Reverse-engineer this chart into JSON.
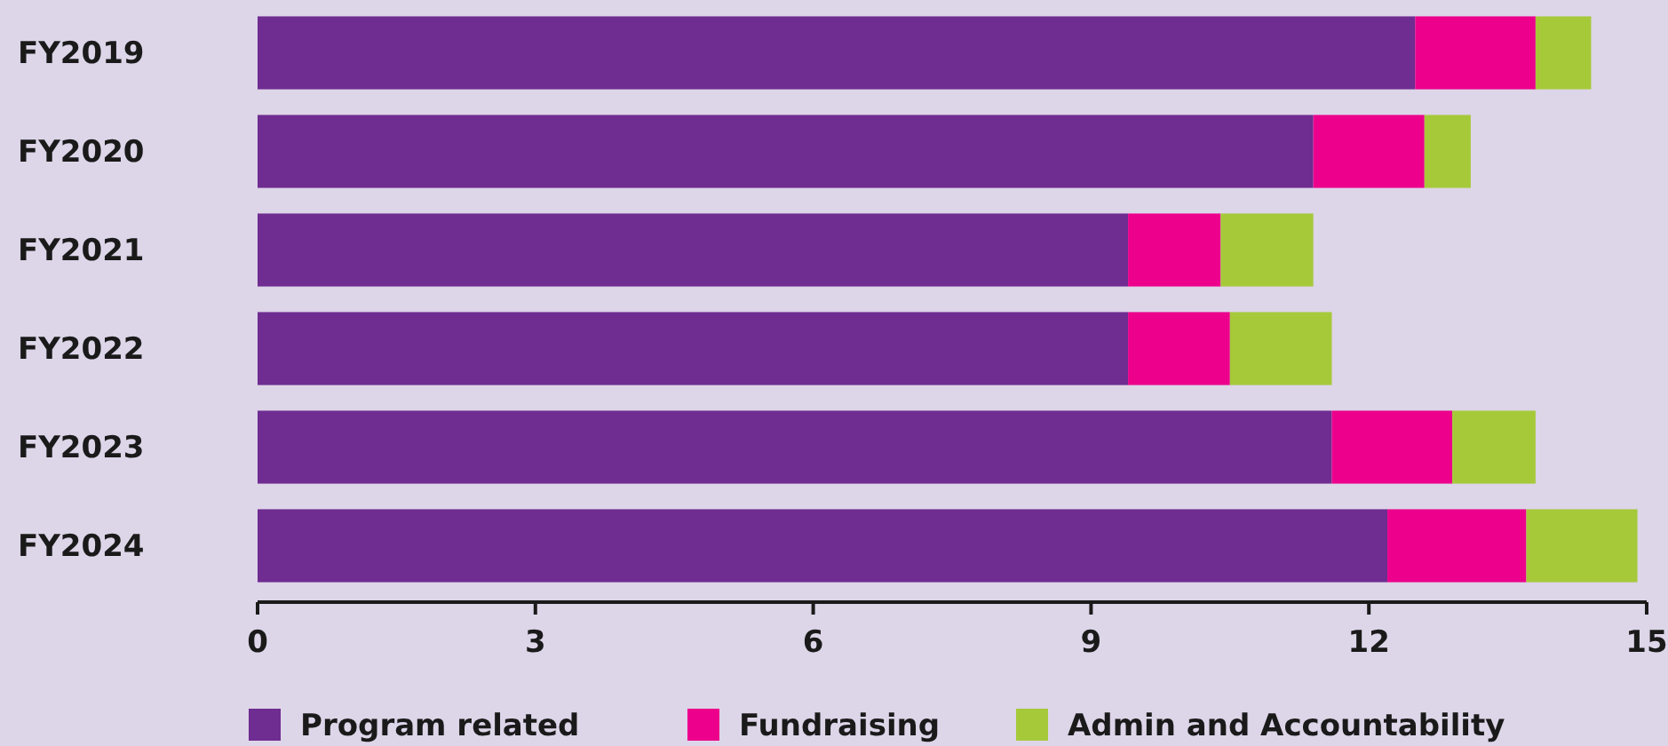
{
  "chart_data": {
    "type": "bar",
    "orientation": "horizontal",
    "stacked": true,
    "categories": [
      "FY2019",
      "FY2020",
      "FY2021",
      "FY2022",
      "FY2023",
      "FY2024"
    ],
    "series": [
      {
        "name": "Program related",
        "color": "#6f2c91",
        "values": [
          12.5,
          11.4,
          9.4,
          9.4,
          11.6,
          12.2
        ]
      },
      {
        "name": "Fundraising",
        "color": "#ec008c",
        "values": [
          1.3,
          1.2,
          1.0,
          1.1,
          1.3,
          1.5
        ]
      },
      {
        "name": "Admin and Accountability",
        "color": "#a6c93a",
        "values": [
          0.6,
          0.5,
          1.0,
          1.1,
          0.9,
          1.2
        ]
      }
    ],
    "xlim": [
      0,
      15
    ],
    "xticks": [
      0,
      3,
      6,
      9,
      12,
      15
    ],
    "grid": false,
    "legend": "bottom"
  }
}
